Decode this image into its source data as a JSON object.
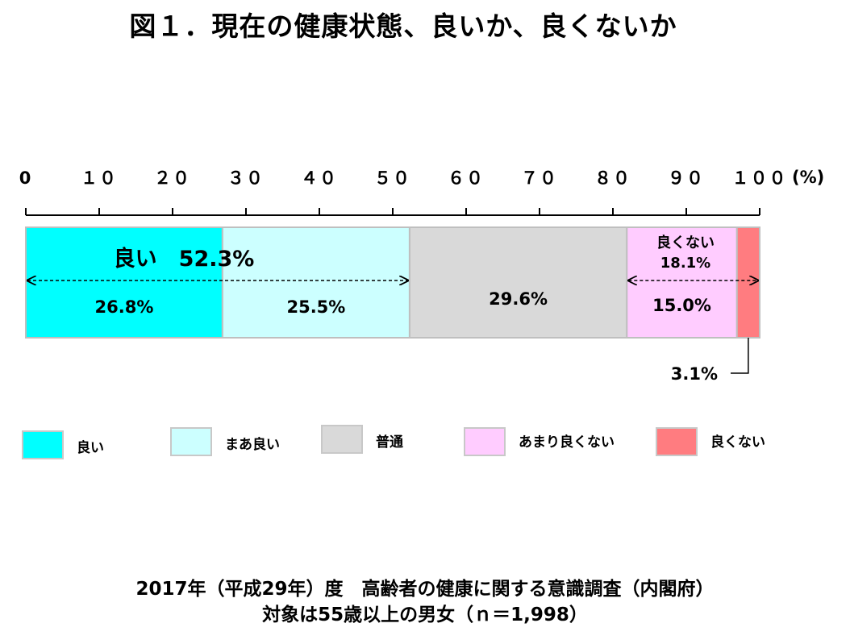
{
  "title": "図１．現在の健康状態、良いか、良くないか",
  "chart_data": {
    "type": "bar",
    "stacked": true,
    "orientation": "horizontal",
    "xlim": [
      0,
      100
    ],
    "x_ticks": [
      "0",
      "１０",
      "２０",
      "３０",
      "４０",
      "５０",
      "６０",
      "７０",
      "８０",
      "９０",
      "１００"
    ],
    "x_unit": "(%)",
    "series": [
      {
        "name": "良い",
        "value": 26.8,
        "label": "26.8%",
        "color": "#00FFFF"
      },
      {
        "name": "まあ良い",
        "value": 25.5,
        "label": "25.5%",
        "color": "#CCFFFF"
      },
      {
        "name": "普通",
        "value": 29.6,
        "label": "29.6%",
        "color": "#D9D9D9"
      },
      {
        "name": "あまり良くない",
        "value": 15.0,
        "label": "15.0%",
        "color": "#FFCCFF"
      },
      {
        "name": "良くない",
        "value": 3.1,
        "label": "3.1%",
        "color": "#FF7C80"
      }
    ],
    "group_annotations": [
      {
        "label": "良い　52.3%",
        "from": 0,
        "to": 52.3
      },
      {
        "label": "良くない\n18.1%",
        "from": 81.9,
        "to": 100
      }
    ],
    "legend": {
      "placement": "below"
    }
  },
  "source": {
    "line1": "2017年（平成29年）度　高齢者の健康に関する意識調査（内閣府）",
    "line2": "対象は55歳以上の男女（ｎ＝1,998）"
  }
}
